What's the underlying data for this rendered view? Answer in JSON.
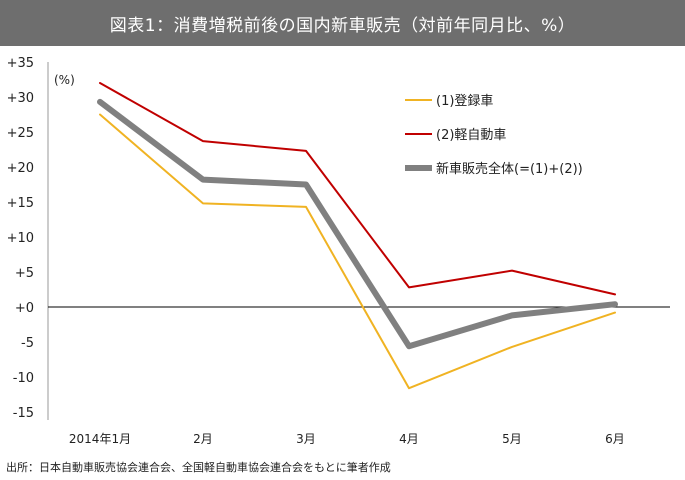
{
  "chart_data": {
    "type": "line",
    "title": "図表1：消費増税前後の国内新車販売（対前年同月比、%）",
    "unit_label": "(%)",
    "categories": [
      "2014年1月",
      "2月",
      "3月",
      "4月",
      "5月",
      "6月"
    ],
    "yticks": [
      "+35",
      "+30",
      "+25",
      "+20",
      "+15",
      "+10",
      "+5",
      "+0",
      "-5",
      "-10",
      "-15"
    ],
    "ylim": [
      -15,
      35
    ],
    "grid": false,
    "legend_position": "top-right",
    "series": [
      {
        "name": "(1)登録車",
        "color": "#f0b323",
        "width": 2,
        "values": [
          27.5,
          14.8,
          14.3,
          -11.6,
          -5.7,
          -0.8
        ]
      },
      {
        "name": "(2)軽自動車",
        "color": "#c00000",
        "width": 2,
        "values": [
          32.0,
          23.7,
          22.3,
          2.8,
          5.2,
          1.8
        ]
      },
      {
        "name": "新車販売全体(=(1)+(2))",
        "color": "#808080",
        "width": 6,
        "values": [
          29.3,
          18.2,
          17.5,
          -5.6,
          -1.2,
          0.4
        ]
      }
    ],
    "source": "出所：日本自動車販売協会連合会、全国軽自動車協会連合会をもとに筆者作成"
  }
}
